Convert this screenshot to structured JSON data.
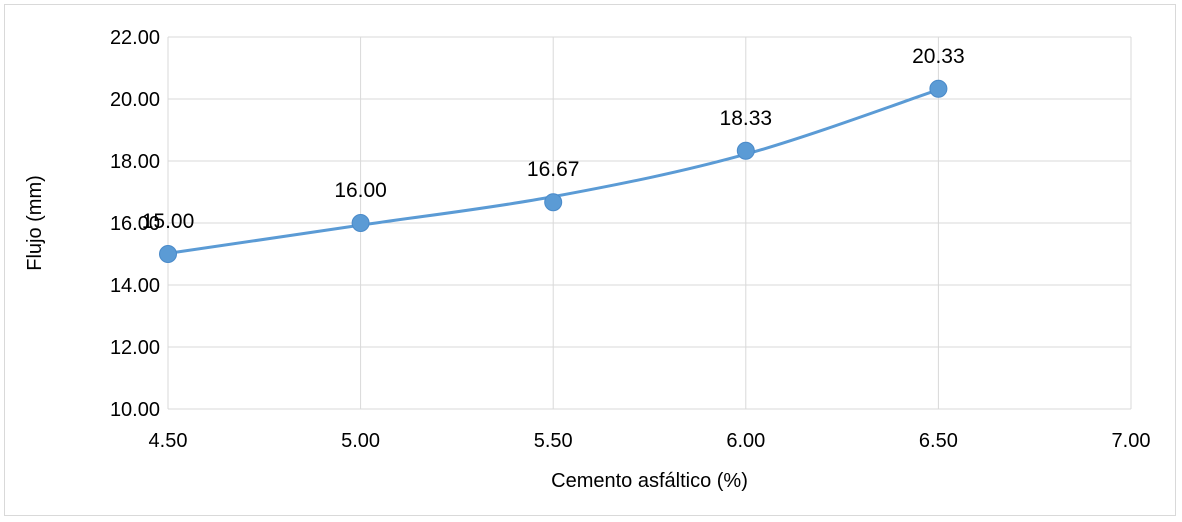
{
  "chart_data": {
    "type": "line",
    "title": "",
    "xlabel": "Cemento asfáltico (%)",
    "ylabel": "Flujo (mm)",
    "xlim": [
      4.5,
      7.0
    ],
    "ylim": [
      10.0,
      22.0
    ],
    "x_ticks": [
      "4.50",
      "5.00",
      "5.50",
      "6.00",
      "6.50",
      "7.00"
    ],
    "y_ticks": [
      "10.00",
      "12.00",
      "14.00",
      "16.00",
      "18.00",
      "20.00",
      "22.00"
    ],
    "grid": true,
    "legend": "none",
    "smooth": true,
    "series": [
      {
        "color": "#5b9bd5",
        "x": [
          4.5,
          5.0,
          5.5,
          6.0,
          6.5
        ],
        "y": [
          15.0,
          16.0,
          16.67,
          18.33,
          20.33
        ],
        "labels": [
          "15.00",
          "16.00",
          "16.67",
          "18.33",
          "20.33"
        ]
      }
    ],
    "trend_line": [
      [
        4.5,
        15.02
      ],
      [
        5.0,
        15.93
      ],
      [
        5.5,
        16.85
      ],
      [
        6.0,
        18.22
      ],
      [
        6.5,
        20.3
      ]
    ]
  }
}
